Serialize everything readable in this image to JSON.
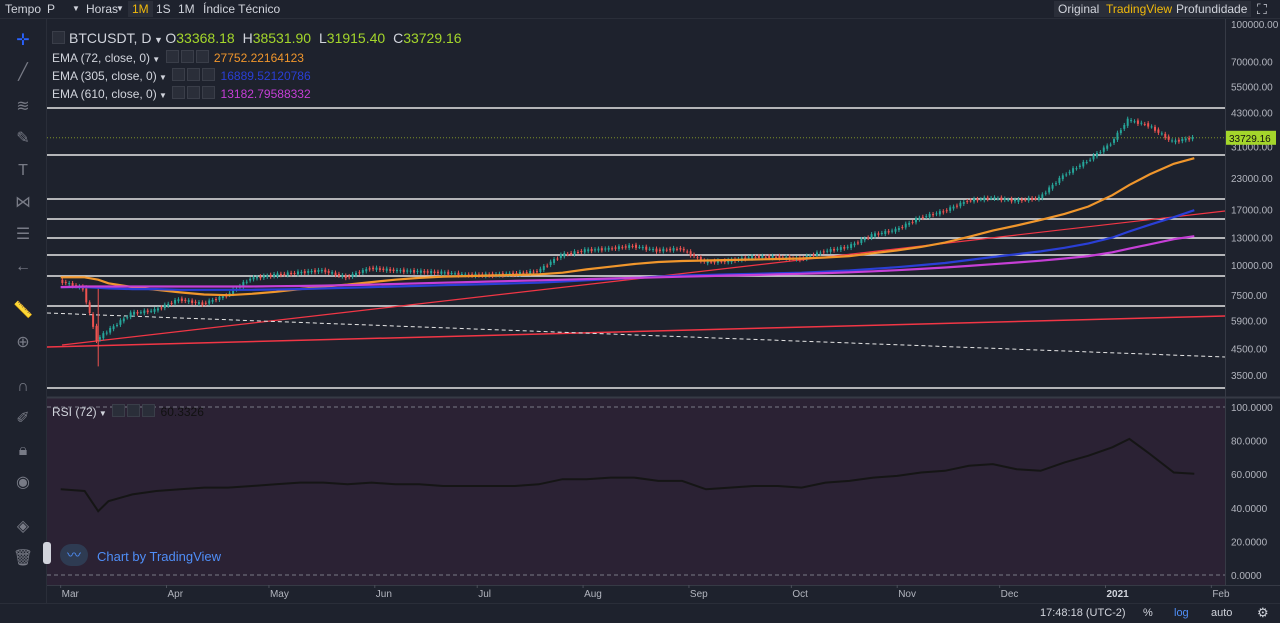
{
  "topbar": {
    "tempo": "Tempo",
    "symbol_sel": "P",
    "horas": "Horas",
    "tf_1m": "1M",
    "tf_1s": "1S",
    "tf_1M": "1M",
    "indicators": "Índice Técnico",
    "original": "Original",
    "tradingview": "TradingView",
    "depth": "Profundidade"
  },
  "legend": {
    "symbol": "BTCUSDT, D",
    "o_label": "O",
    "o_value": "33368.18",
    "h_label": "H",
    "h_value": "38531.90",
    "l_label": "L",
    "l_value": "31915.40",
    "c_label": "C",
    "c_value": "33729.16",
    "ema1_label": "EMA (72, close, 0)",
    "ema1_value": "27752.22164123",
    "ema2_label": "EMA (305, close, 0)",
    "ema2_value": "16889.52120786",
    "ema3_label": "EMA (610, close, 0)",
    "ema3_value": "13182.79588332",
    "rsi_label": "RSI (72)",
    "rsi_value": "60.3326",
    "watermark": "Chart by TradingView"
  },
  "bottombar": {
    "time": "17:48:18 (UTC-2)",
    "percent": "%",
    "log": "log",
    "auto": "auto"
  },
  "colors": {
    "up": "#26a69a",
    "down": "#ef5350",
    "ema72": "#f0962c",
    "ema305": "#2a3fd6",
    "ema610": "#c63fd6",
    "trend": "#f23645",
    "price_label": "#a4d62b"
  },
  "chart_data": {
    "type": "line",
    "symbol": "BTCUSDT",
    "interval": "D",
    "y_scale": "log",
    "y_ticks": [
      3500,
      4500,
      5900,
      7500,
      10000,
      13000,
      17000,
      23000,
      31000,
      43000,
      55000,
      70000,
      100000
    ],
    "y_tick_labels": [
      "3500.00",
      "4500.00",
      "5900.00",
      "7500.00",
      "10000.00",
      "13000.00",
      "17000.00",
      "23000.00",
      "31000.00",
      "43000.00",
      "55000.00",
      "70000.00",
      "100000.00"
    ],
    "x_tick_labels": [
      "Mar",
      "Apr",
      "May",
      "Jun",
      "Jul",
      "Aug",
      "Sep",
      "Oct",
      "Nov",
      "Dec",
      "2021",
      "Feb"
    ],
    "last_price": 33729.16,
    "last_price_label": "33729.16",
    "ohlc_last": {
      "open": 33368.18,
      "high": 38531.9,
      "low": 31915.4,
      "close": 33729.16
    },
    "x": [
      "2020-03-01",
      "2020-03-08",
      "2020-03-12",
      "2020-03-15",
      "2020-03-22",
      "2020-03-29",
      "2020-04-05",
      "2020-04-12",
      "2020-04-19",
      "2020-04-26",
      "2020-05-03",
      "2020-05-10",
      "2020-05-17",
      "2020-05-24",
      "2020-05-31",
      "2020-06-07",
      "2020-06-14",
      "2020-06-21",
      "2020-06-28",
      "2020-07-05",
      "2020-07-12",
      "2020-07-19",
      "2020-07-26",
      "2020-08-02",
      "2020-08-09",
      "2020-08-16",
      "2020-08-23",
      "2020-08-30",
      "2020-09-06",
      "2020-09-13",
      "2020-09-20",
      "2020-09-27",
      "2020-10-04",
      "2020-10-11",
      "2020-10-18",
      "2020-10-25",
      "2020-11-01",
      "2020-11-08",
      "2020-11-15",
      "2020-11-22",
      "2020-11-29",
      "2020-12-06",
      "2020-12-13",
      "2020-12-20",
      "2020-12-27",
      "2021-01-03",
      "2021-01-08",
      "2021-01-14",
      "2021-01-21",
      "2021-01-27"
    ],
    "series": [
      {
        "name": "BTCUSDT",
        "values": [
          8600,
          8000,
          4900,
          5300,
          6300,
          6500,
          7200,
          6900,
          7500,
          8800,
          9100,
          9300,
          9500,
          8900,
          9700,
          9500,
          9400,
          9300,
          9100,
          9100,
          9200,
          9400,
          11000,
          11500,
          11700,
          12000,
          11500,
          11700,
          10300,
          10400,
          10800,
          10800,
          10600,
          11400,
          11900,
          13300,
          14000,
          15700,
          16700,
          18500,
          19000,
          18500,
          19000,
          23500,
          27000,
          32000,
          40000,
          38000,
          32500,
          33729
        ]
      },
      {
        "name": "EMA (72, close, 0)",
        "values": [
          8900,
          8900,
          8700,
          8400,
          8100,
          7900,
          7700,
          7550,
          7500,
          7600,
          7750,
          7950,
          8150,
          8300,
          8500,
          8700,
          8850,
          8950,
          9000,
          9050,
          9100,
          9150,
          9300,
          9600,
          9850,
          10100,
          10300,
          10400,
          10450,
          10500,
          10550,
          10600,
          10650,
          10750,
          10900,
          11200,
          11500,
          11900,
          12400,
          13100,
          13900,
          14600,
          15400,
          16300,
          17500,
          19500,
          21500,
          23800,
          26300,
          27752
        ]
      },
      {
        "name": "EMA (305, close, 0)",
        "values": [
          8100,
          8100,
          8050,
          8000,
          7950,
          7950,
          7900,
          7900,
          7900,
          7900,
          7920,
          7950,
          8000,
          8050,
          8100,
          8150,
          8200,
          8250,
          8300,
          8350,
          8400,
          8450,
          8550,
          8650,
          8750,
          8850,
          8950,
          9050,
          9100,
          9150,
          9200,
          9250,
          9300,
          9400,
          9500,
          9650,
          9800,
          10000,
          10200,
          10500,
          10800,
          11100,
          11400,
          11800,
          12300,
          13000,
          13800,
          14700,
          15800,
          16889
        ]
      },
      {
        "name": "EMA (610, close, 0)",
        "values": [
          8100,
          8150,
          8150,
          8150,
          8150,
          8150,
          8150,
          8150,
          8150,
          8150,
          8170,
          8190,
          8220,
          8260,
          8300,
          8350,
          8400,
          8450,
          8500,
          8550,
          8600,
          8650,
          8700,
          8750,
          8800,
          8850,
          8900,
          8950,
          9000,
          9050,
          9100,
          9150,
          9200,
          9260,
          9330,
          9420,
          9520,
          9640,
          9770,
          9920,
          10080,
          10250,
          10430,
          10650,
          10900,
          11300,
          11700,
          12200,
          12800,
          13182
        ]
      }
    ],
    "rsi": {
      "name": "RSI (72)",
      "last": 60.3326,
      "y_ticks": [
        0,
        20,
        40,
        60,
        80,
        100
      ],
      "y_tick_labels": [
        "0.0000",
        "20.0000",
        "40.0000",
        "60.0000",
        "80.0000",
        "100.0000"
      ],
      "values": [
        51,
        50,
        38,
        44,
        48,
        50,
        51,
        52,
        52,
        53,
        54,
        55,
        55,
        54,
        55,
        54,
        54,
        53,
        53,
        53,
        53,
        54,
        57,
        57,
        58,
        58,
        56,
        56,
        51,
        52,
        53,
        53,
        52,
        55,
        56,
        58,
        59,
        61,
        62,
        65,
        66,
        63,
        62,
        67,
        71,
        76,
        81,
        72,
        61,
        60.3
      ]
    }
  }
}
